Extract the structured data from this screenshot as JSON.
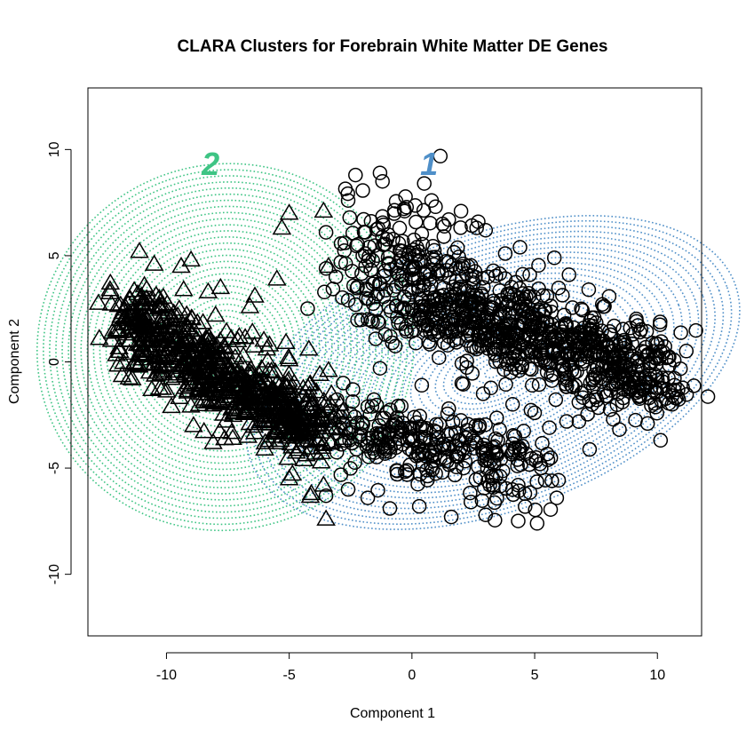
{
  "chart_data": {
    "type": "scatter",
    "title": "CLARA Clusters for Forebrain White Matter DE Genes",
    "xlabel": "Component 1",
    "ylabel": "Component 2",
    "xlim": [
      -13.2,
      11.8
    ],
    "ylim": [
      -12.9,
      12.9
    ],
    "x_ticks": [
      -10,
      -5,
      0,
      5,
      10
    ],
    "y_ticks": [
      -10,
      -5,
      0,
      5,
      10
    ],
    "x_tick_labels": [
      "-10",
      "-5",
      "0",
      "5",
      "10"
    ],
    "y_tick_labels": [
      "-10",
      "-5",
      "0",
      "5",
      "10"
    ],
    "grid": false,
    "clusters": [
      {
        "label": "1",
        "marker": "circle",
        "color": "#4f8fc8",
        "ellipse": {
          "cx": 3.3,
          "cy": -0.5,
          "rx": 10.5,
          "ry": 6.5,
          "angle_deg": -20
        },
        "label_position": [
          0.7,
          9.3
        ],
        "points": [
          [
            0.5,
            8.4
          ],
          [
            -1.2,
            8.5
          ],
          [
            -2.3,
            8.8
          ],
          [
            -1.3,
            8.9
          ],
          [
            -2.6,
            7.6
          ],
          [
            -3.5,
            6.1
          ],
          [
            -1.9,
            6.1
          ],
          [
            0.8,
            7.6
          ],
          [
            1.5,
            6.7
          ],
          [
            2.0,
            7.1
          ],
          [
            3.0,
            6.2
          ],
          [
            4.4,
            5.4
          ],
          [
            5.8,
            4.9
          ],
          [
            6.4,
            4.1
          ],
          [
            7.2,
            3.4
          ],
          [
            7.8,
            2.6
          ],
          [
            9.0,
            1.3
          ],
          [
            10.0,
            0.3
          ],
          [
            10.7,
            -1.1
          ],
          [
            10.6,
            -2.0
          ],
          [
            9.6,
            -2.9
          ],
          [
            8.2,
            -2.7
          ],
          [
            6.3,
            -2.8
          ],
          [
            5.6,
            -3.1
          ],
          [
            5.7,
            -5.6
          ],
          [
            5.9,
            -6.4
          ],
          [
            5.1,
            -7.6
          ],
          [
            3.0,
            -7.2
          ],
          [
            1.6,
            -7.3
          ],
          [
            0.3,
            -6.8
          ],
          [
            -0.9,
            -6.9
          ],
          [
            -1.8,
            -6.4
          ],
          [
            -2.6,
            -6.0
          ],
          [
            -3.5,
            -6.3
          ],
          [
            -0.4,
            -3.2
          ],
          [
            -1.3,
            -0.3
          ],
          [
            -2.8,
            -1.0
          ],
          [
            -3.3,
            -2.3
          ],
          [
            -2.4,
            -1.3
          ],
          [
            -0.6,
            2.1
          ],
          [
            -1.6,
            1.9
          ],
          [
            -2.6,
            2.9
          ],
          [
            -3.1,
            4.0
          ],
          [
            -3.5,
            4.4
          ],
          [
            -1.4,
            3.2
          ],
          [
            0.2,
            5.4
          ],
          [
            -0.5,
            6.3
          ],
          [
            0.9,
            4.8
          ],
          [
            1.8,
            3.8
          ],
          [
            2.2,
            2.5
          ],
          [
            2.8,
            1.4
          ],
          [
            3.4,
            0.6
          ],
          [
            4.2,
            -0.3
          ],
          [
            4.9,
            -1.1
          ],
          [
            5.3,
            0.9
          ],
          [
            6.0,
            1.6
          ],
          [
            6.7,
            0.8
          ],
          [
            7.4,
            -0.4
          ],
          [
            8.1,
            0.2
          ],
          [
            8.7,
            -0.8
          ],
          [
            9.3,
            -1.6
          ],
          [
            9.9,
            -0.6
          ],
          [
            1.1,
            0.2
          ],
          [
            0.4,
            -1.1
          ],
          [
            1.5,
            -2.2
          ],
          [
            2.6,
            -3.0
          ],
          [
            3.5,
            -3.7
          ],
          [
            4.3,
            -4.6
          ],
          [
            2.1,
            -5.0
          ],
          [
            0.8,
            -4.4
          ],
          [
            -0.2,
            -5.1
          ],
          [
            -1.1,
            -4.1
          ],
          [
            -2.1,
            -3.4
          ],
          [
            1.9,
            1.1
          ],
          [
            2.4,
            3.0
          ],
          [
            3.1,
            4.0
          ],
          [
            3.9,
            3.2
          ],
          [
            4.6,
            2.4
          ],
          [
            5.5,
            3.1
          ],
          [
            6.2,
            2.2
          ],
          [
            7.0,
            1.6
          ],
          [
            7.7,
            1.0
          ],
          [
            8.5,
            0.5
          ],
          [
            9.2,
            -0.2
          ],
          [
            3.7,
            1.7
          ],
          [
            4.1,
            -2.0
          ],
          [
            6.8,
            -1.9
          ],
          [
            7.9,
            -1.6
          ],
          [
            2.9,
            -1.5
          ],
          [
            1.3,
            5.9
          ],
          [
            -0.1,
            3.4
          ],
          [
            0.6,
            2.6
          ],
          [
            -0.8,
            0.9
          ],
          [
            -1.8,
            -2.1
          ],
          [
            0.1,
            -2.6
          ],
          [
            3.3,
            -5.8
          ],
          [
            4.6,
            -6.2
          ],
          [
            2.4,
            -6.6
          ],
          [
            -2.9,
            4.7
          ],
          [
            1.0,
            -3.3
          ],
          [
            5.0,
            -2.4
          ],
          [
            6.1,
            -0.2
          ],
          [
            8.9,
            1.6
          ],
          [
            -0.3,
            7.1
          ],
          [
            1.7,
            2.0
          ],
          [
            4.8,
            4.1
          ],
          [
            3.8,
            5.1
          ],
          [
            2.7,
            6.6
          ],
          [
            -1.9,
            5.1
          ]
        ]
      },
      {
        "label": "2",
        "marker": "triangle",
        "color": "#3ec484",
        "ellipse": {
          "cx": -7.6,
          "cy": 0.7,
          "rx": 7.7,
          "ry": 8.6,
          "angle_deg": -20
        },
        "label_position": [
          -8.2,
          9.3
        ],
        "points": [
          [
            -12.3,
            3.4
          ],
          [
            -11.1,
            5.2
          ],
          [
            -10.5,
            4.6
          ],
          [
            -9.4,
            4.5
          ],
          [
            -9.0,
            4.8
          ],
          [
            -8.3,
            3.3
          ],
          [
            -7.8,
            3.5
          ],
          [
            -6.4,
            3.1
          ],
          [
            -6.6,
            2.6
          ],
          [
            -5.5,
            3.9
          ],
          [
            -5.3,
            6.3
          ],
          [
            -5.0,
            7.0
          ],
          [
            -3.6,
            7.1
          ],
          [
            -3.4,
            4.5
          ],
          [
            -4.2,
            0.6
          ],
          [
            -3.4,
            -0.4
          ],
          [
            -3.7,
            -3.3
          ],
          [
            -3.6,
            -5.8
          ],
          [
            -4.1,
            -6.2
          ],
          [
            -3.5,
            -7.4
          ],
          [
            -5.0,
            -5.5
          ],
          [
            -6.0,
            -4.1
          ],
          [
            -7.3,
            -3.6
          ],
          [
            -8.1,
            -3.8
          ],
          [
            -8.9,
            -3.0
          ],
          [
            -9.8,
            -2.1
          ],
          [
            -10.6,
            -1.3
          ],
          [
            -11.4,
            -0.8
          ],
          [
            -11.9,
            0.5
          ],
          [
            -12.2,
            1.4
          ],
          [
            -11.6,
            2.2
          ],
          [
            -11.0,
            2.8
          ],
          [
            -10.7,
            1.6
          ],
          [
            -10.1,
            0.8
          ],
          [
            -9.5,
            0.2
          ],
          [
            -9.0,
            -0.6
          ],
          [
            -8.4,
            -1.2
          ],
          [
            -7.8,
            -1.9
          ],
          [
            -7.2,
            -2.4
          ],
          [
            -6.6,
            -2.9
          ],
          [
            -6.0,
            -2.2
          ],
          [
            -5.4,
            -1.6
          ],
          [
            -4.8,
            -1.0
          ],
          [
            -4.3,
            -2.0
          ],
          [
            -5.0,
            0.1
          ],
          [
            -5.8,
            0.8
          ],
          [
            -6.5,
            1.4
          ],
          [
            -7.1,
            1.0
          ],
          [
            -7.8,
            0.5
          ],
          [
            -8.4,
            1.1
          ],
          [
            -9.1,
            1.6
          ],
          [
            -9.7,
            2.3
          ],
          [
            -10.3,
            3.0
          ],
          [
            -10.9,
            3.6
          ],
          [
            -11.5,
            3.0
          ],
          [
            -11.8,
            1.8
          ],
          [
            -10.2,
            -0.4
          ],
          [
            -8.7,
            -0.1
          ],
          [
            -7.4,
            -0.6
          ],
          [
            -6.2,
            -0.9
          ],
          [
            -5.6,
            -3.5
          ],
          [
            -4.6,
            -3.1
          ],
          [
            -3.9,
            -1.4
          ],
          [
            -4.4,
            -4.6
          ],
          [
            -3.2,
            -2.6
          ],
          [
            -2.8,
            -3.6
          ],
          [
            -6.8,
            -1.5
          ],
          [
            -8.0,
            2.2
          ],
          [
            -9.3,
            3.4
          ],
          [
            -10.8,
            0.4
          ]
        ]
      }
    ]
  }
}
